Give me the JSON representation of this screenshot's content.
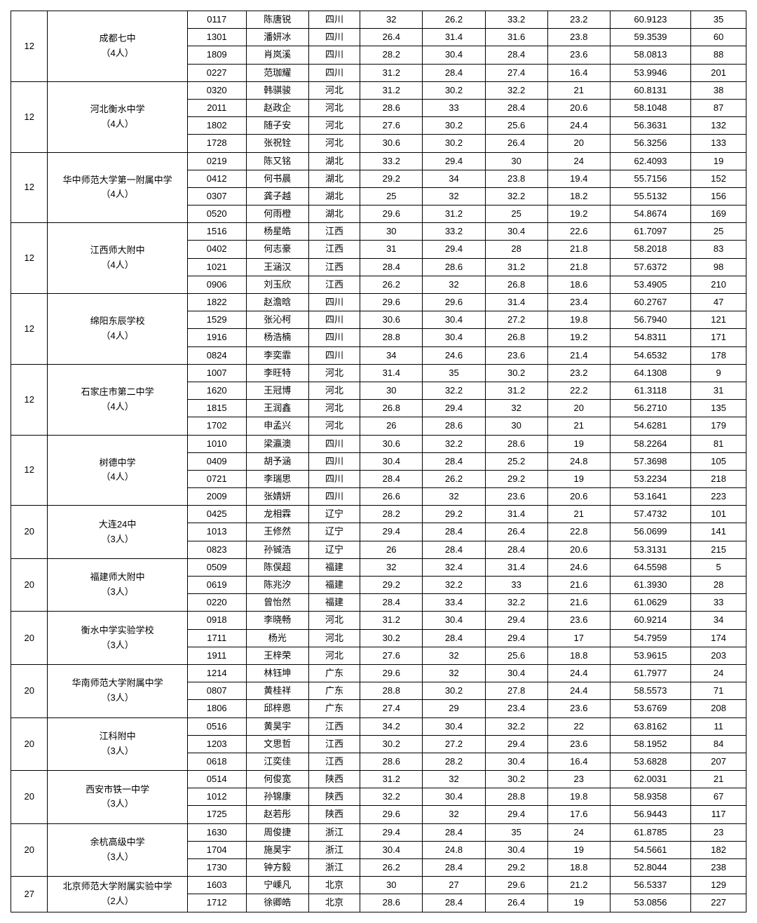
{
  "columns": {
    "widths_pct": [
      5,
      19,
      8,
      8.5,
      7,
      8.5,
      8.5,
      8.5,
      8.5,
      11,
      7.5
    ]
  },
  "groups": [
    {
      "rank": "12",
      "school": "成都七中",
      "count_label": "（4人）",
      "rows": [
        {
          "id": "0117",
          "name": "陈唐锐",
          "prov": "四川",
          "s1": "32",
          "s2": "26.2",
          "s3": "33.2",
          "s4": "23.2",
          "total": "60.9123",
          "place": "35"
        },
        {
          "id": "1301",
          "name": "潘妍冰",
          "prov": "四川",
          "s1": "26.4",
          "s2": "31.4",
          "s3": "31.6",
          "s4": "23.8",
          "total": "59.3539",
          "place": "60"
        },
        {
          "id": "1809",
          "name": "肖岚溪",
          "prov": "四川",
          "s1": "28.2",
          "s2": "30.4",
          "s3": "28.4",
          "s4": "23.6",
          "total": "58.0813",
          "place": "88"
        },
        {
          "id": "0227",
          "name": "范珈耀",
          "prov": "四川",
          "s1": "31.2",
          "s2": "28.4",
          "s3": "27.4",
          "s4": "16.4",
          "total": "53.9946",
          "place": "201"
        }
      ]
    },
    {
      "rank": "12",
      "school": "河北衡水中学",
      "count_label": "（4人）",
      "rows": [
        {
          "id": "0320",
          "name": "韩骐骏",
          "prov": "河北",
          "s1": "31.2",
          "s2": "30.2",
          "s3": "32.2",
          "s4": "21",
          "total": "60.8131",
          "place": "38"
        },
        {
          "id": "2011",
          "name": "赵政企",
          "prov": "河北",
          "s1": "28.6",
          "s2": "33",
          "s3": "28.4",
          "s4": "20.6",
          "total": "58.1048",
          "place": "87"
        },
        {
          "id": "1802",
          "name": "随子安",
          "prov": "河北",
          "s1": "27.6",
          "s2": "30.2",
          "s3": "25.6",
          "s4": "24.4",
          "total": "56.3631",
          "place": "132"
        },
        {
          "id": "1728",
          "name": "张祝铨",
          "prov": "河北",
          "s1": "30.6",
          "s2": "30.2",
          "s3": "26.4",
          "s4": "20",
          "total": "56.3256",
          "place": "133"
        }
      ]
    },
    {
      "rank": "12",
      "school": "华中师范大学第一附属中学",
      "count_label": "（4人）",
      "rows": [
        {
          "id": "0219",
          "name": "陈又铭",
          "prov": "湖北",
          "s1": "33.2",
          "s2": "29.4",
          "s3": "30",
          "s4": "24",
          "total": "62.4093",
          "place": "19"
        },
        {
          "id": "0412",
          "name": "何书晨",
          "prov": "湖北",
          "s1": "29.2",
          "s2": "34",
          "s3": "23.8",
          "s4": "19.4",
          "total": "55.7156",
          "place": "152"
        },
        {
          "id": "0307",
          "name": "龚子越",
          "prov": "湖北",
          "s1": "25",
          "s2": "32",
          "s3": "32.2",
          "s4": "18.2",
          "total": "55.5132",
          "place": "156"
        },
        {
          "id": "0520",
          "name": "何雨橙",
          "prov": "湖北",
          "s1": "29.6",
          "s2": "31.2",
          "s3": "25",
          "s4": "19.2",
          "total": "54.8674",
          "place": "169"
        }
      ]
    },
    {
      "rank": "12",
      "school": "江西师大附中",
      "count_label": "（4人）",
      "rows": [
        {
          "id": "1516",
          "name": "杨星皓",
          "prov": "江西",
          "s1": "30",
          "s2": "33.2",
          "s3": "30.4",
          "s4": "22.6",
          "total": "61.7097",
          "place": "25"
        },
        {
          "id": "0402",
          "name": "何志豪",
          "prov": "江西",
          "s1": "31",
          "s2": "29.4",
          "s3": "28",
          "s4": "21.8",
          "total": "58.2018",
          "place": "83"
        },
        {
          "id": "1021",
          "name": "王涵汉",
          "prov": "江西",
          "s1": "28.4",
          "s2": "28.6",
          "s3": "31.2",
          "s4": "21.8",
          "total": "57.6372",
          "place": "98"
        },
        {
          "id": "0906",
          "name": "刘玉欣",
          "prov": "江西",
          "s1": "26.2",
          "s2": "32",
          "s3": "26.8",
          "s4": "18.6",
          "total": "53.4905",
          "place": "210"
        }
      ]
    },
    {
      "rank": "12",
      "school": "绵阳东辰学校",
      "count_label": "（4人）",
      "rows": [
        {
          "id": "1822",
          "name": "赵澹晗",
          "prov": "四川",
          "s1": "29.6",
          "s2": "29.6",
          "s3": "31.4",
          "s4": "23.4",
          "total": "60.2767",
          "place": "47"
        },
        {
          "id": "1529",
          "name": "张沁柯",
          "prov": "四川",
          "s1": "30.6",
          "s2": "30.4",
          "s3": "27.2",
          "s4": "19.8",
          "total": "56.7940",
          "place": "121"
        },
        {
          "id": "1916",
          "name": "杨浩楠",
          "prov": "四川",
          "s1": "28.8",
          "s2": "30.4",
          "s3": "26.8",
          "s4": "19.2",
          "total": "54.8311",
          "place": "171"
        },
        {
          "id": "0824",
          "name": "李奕霏",
          "prov": "四川",
          "s1": "34",
          "s2": "24.6",
          "s3": "23.6",
          "s4": "21.4",
          "total": "54.6532",
          "place": "178"
        }
      ]
    },
    {
      "rank": "12",
      "school": "石家庄市第二中学",
      "count_label": "（4人）",
      "rows": [
        {
          "id": "1007",
          "name": "李旺特",
          "prov": "河北",
          "s1": "31.4",
          "s2": "35",
          "s3": "30.2",
          "s4": "23.2",
          "total": "64.1308",
          "place": "9"
        },
        {
          "id": "1620",
          "name": "王冠博",
          "prov": "河北",
          "s1": "30",
          "s2": "32.2",
          "s3": "31.2",
          "s4": "22.2",
          "total": "61.3118",
          "place": "31"
        },
        {
          "id": "1815",
          "name": "王润鑫",
          "prov": "河北",
          "s1": "26.8",
          "s2": "29.4",
          "s3": "32",
          "s4": "20",
          "total": "56.2710",
          "place": "135"
        },
        {
          "id": "1702",
          "name": "申孟兴",
          "prov": "河北",
          "s1": "26",
          "s2": "28.6",
          "s3": "30",
          "s4": "21",
          "total": "54.6281",
          "place": "179"
        }
      ]
    },
    {
      "rank": "12",
      "school": "树德中学",
      "count_label": "（4人）",
      "rows": [
        {
          "id": "1010",
          "name": "梁瀛澳",
          "prov": "四川",
          "s1": "30.6",
          "s2": "32.2",
          "s3": "28.6",
          "s4": "19",
          "total": "58.2264",
          "place": "81"
        },
        {
          "id": "0409",
          "name": "胡予涵",
          "prov": "四川",
          "s1": "30.4",
          "s2": "28.4",
          "s3": "25.2",
          "s4": "24.8",
          "total": "57.3698",
          "place": "105"
        },
        {
          "id": "0721",
          "name": "李瑞思",
          "prov": "四川",
          "s1": "28.4",
          "s2": "26.2",
          "s3": "29.2",
          "s4": "19",
          "total": "53.2234",
          "place": "218"
        },
        {
          "id": "2009",
          "name": "张婧妍",
          "prov": "四川",
          "s1": "26.6",
          "s2": "32",
          "s3": "23.6",
          "s4": "20.6",
          "total": "53.1641",
          "place": "223"
        }
      ]
    },
    {
      "rank": "20",
      "school": "大连24中",
      "count_label": "（3人）",
      "rows": [
        {
          "id": "0425",
          "name": "龙相霖",
          "prov": "辽宁",
          "s1": "28.2",
          "s2": "29.2",
          "s3": "31.4",
          "s4": "21",
          "total": "57.4732",
          "place": "101"
        },
        {
          "id": "1013",
          "name": "王修然",
          "prov": "辽宁",
          "s1": "29.4",
          "s2": "28.4",
          "s3": "26.4",
          "s4": "22.8",
          "total": "56.0699",
          "place": "141"
        },
        {
          "id": "0823",
          "name": "孙铖浩",
          "prov": "辽宁",
          "s1": "26",
          "s2": "28.4",
          "s3": "28.4",
          "s4": "20.6",
          "total": "53.3131",
          "place": "215"
        }
      ]
    },
    {
      "rank": "20",
      "school": "福建师大附中",
      "count_label": "（3人）",
      "rows": [
        {
          "id": "0509",
          "name": "陈俣超",
          "prov": "福建",
          "s1": "32",
          "s2": "32.4",
          "s3": "31.4",
          "s4": "24.6",
          "total": "64.5598",
          "place": "5"
        },
        {
          "id": "0619",
          "name": "陈兆汐",
          "prov": "福建",
          "s1": "29.2",
          "s2": "32.2",
          "s3": "33",
          "s4": "21.6",
          "total": "61.3930",
          "place": "28"
        },
        {
          "id": "0220",
          "name": "曾怡然",
          "prov": "福建",
          "s1": "28.4",
          "s2": "33.4",
          "s3": "32.2",
          "s4": "21.6",
          "total": "61.0629",
          "place": "33"
        }
      ]
    },
    {
      "rank": "20",
      "school": "衡水中学实验学校",
      "count_label": "（3人）",
      "rows": [
        {
          "id": "0918",
          "name": "李晓畅",
          "prov": "河北",
          "s1": "31.2",
          "s2": "30.4",
          "s3": "29.4",
          "s4": "23.6",
          "total": "60.9214",
          "place": "34"
        },
        {
          "id": "1711",
          "name": "杨光",
          "prov": "河北",
          "s1": "30.2",
          "s2": "28.4",
          "s3": "29.4",
          "s4": "17",
          "total": "54.7959",
          "place": "174"
        },
        {
          "id": "1911",
          "name": "王梓荣",
          "prov": "河北",
          "s1": "27.6",
          "s2": "32",
          "s3": "25.6",
          "s4": "18.8",
          "total": "53.9615",
          "place": "203"
        }
      ]
    },
    {
      "rank": "20",
      "school": "华南师范大学附属中学",
      "count_label": "（3人）",
      "rows": [
        {
          "id": "1214",
          "name": "林钰坤",
          "prov": "广东",
          "s1": "29.6",
          "s2": "32",
          "s3": "30.4",
          "s4": "24.4",
          "total": "61.7977",
          "place": "24"
        },
        {
          "id": "0807",
          "name": "黄桂祥",
          "prov": "广东",
          "s1": "28.8",
          "s2": "30.2",
          "s3": "27.8",
          "s4": "24.4",
          "total": "58.5573",
          "place": "71"
        },
        {
          "id": "1806",
          "name": "邱梓恩",
          "prov": "广东",
          "s1": "27.4",
          "s2": "29",
          "s3": "23.4",
          "s4": "23.6",
          "total": "53.6769",
          "place": "208"
        }
      ]
    },
    {
      "rank": "20",
      "school": "江科附中",
      "count_label": "（3人）",
      "rows": [
        {
          "id": "0516",
          "name": "黄昊宇",
          "prov": "江西",
          "s1": "34.2",
          "s2": "30.4",
          "s3": "32.2",
          "s4": "22",
          "total": "63.8162",
          "place": "11"
        },
        {
          "id": "1203",
          "name": "文思哲",
          "prov": "江西",
          "s1": "30.2",
          "s2": "27.2",
          "s3": "29.4",
          "s4": "23.6",
          "total": "58.1952",
          "place": "84"
        },
        {
          "id": "0618",
          "name": "江奕佳",
          "prov": "江西",
          "s1": "28.6",
          "s2": "28.2",
          "s3": "30.4",
          "s4": "16.4",
          "total": "53.6828",
          "place": "207"
        }
      ]
    },
    {
      "rank": "20",
      "school": "西安市铁一中学",
      "count_label": "（3人）",
      "rows": [
        {
          "id": "0514",
          "name": "何俊宽",
          "prov": "陕西",
          "s1": "31.2",
          "s2": "32",
          "s3": "30.2",
          "s4": "23",
          "total": "62.0031",
          "place": "21"
        },
        {
          "id": "1012",
          "name": "孙锦康",
          "prov": "陕西",
          "s1": "32.2",
          "s2": "30.4",
          "s3": "28.8",
          "s4": "19.8",
          "total": "58.9358",
          "place": "67"
        },
        {
          "id": "1725",
          "name": "赵若彤",
          "prov": "陕西",
          "s1": "29.6",
          "s2": "32",
          "s3": "29.4",
          "s4": "17.6",
          "total": "56.9443",
          "place": "117"
        }
      ]
    },
    {
      "rank": "20",
      "school": "余杭高级中学",
      "count_label": "（3人）",
      "rows": [
        {
          "id": "1630",
          "name": "周俊捷",
          "prov": "浙江",
          "s1": "29.4",
          "s2": "28.4",
          "s3": "35",
          "s4": "24",
          "total": "61.8785",
          "place": "23"
        },
        {
          "id": "1704",
          "name": "施昊宇",
          "prov": "浙江",
          "s1": "30.4",
          "s2": "24.8",
          "s3": "30.4",
          "s4": "19",
          "total": "54.5661",
          "place": "182"
        },
        {
          "id": "1730",
          "name": "钟方毅",
          "prov": "浙江",
          "s1": "26.2",
          "s2": "28.4",
          "s3": "29.2",
          "s4": "18.8",
          "total": "52.8044",
          "place": "238"
        }
      ]
    },
    {
      "rank": "27",
      "school": "北京师范大学附属实验中学",
      "count_label": "（2人）",
      "rows": [
        {
          "id": "1603",
          "name": "宁嵊凡",
          "prov": "北京",
          "s1": "30",
          "s2": "27",
          "s3": "29.6",
          "s4": "21.2",
          "total": "56.5337",
          "place": "129"
        },
        {
          "id": "1712",
          "name": "徐卿皓",
          "prov": "北京",
          "s1": "28.6",
          "s2": "28.4",
          "s3": "26.4",
          "s4": "19",
          "total": "53.0856",
          "place": "227"
        }
      ]
    }
  ]
}
